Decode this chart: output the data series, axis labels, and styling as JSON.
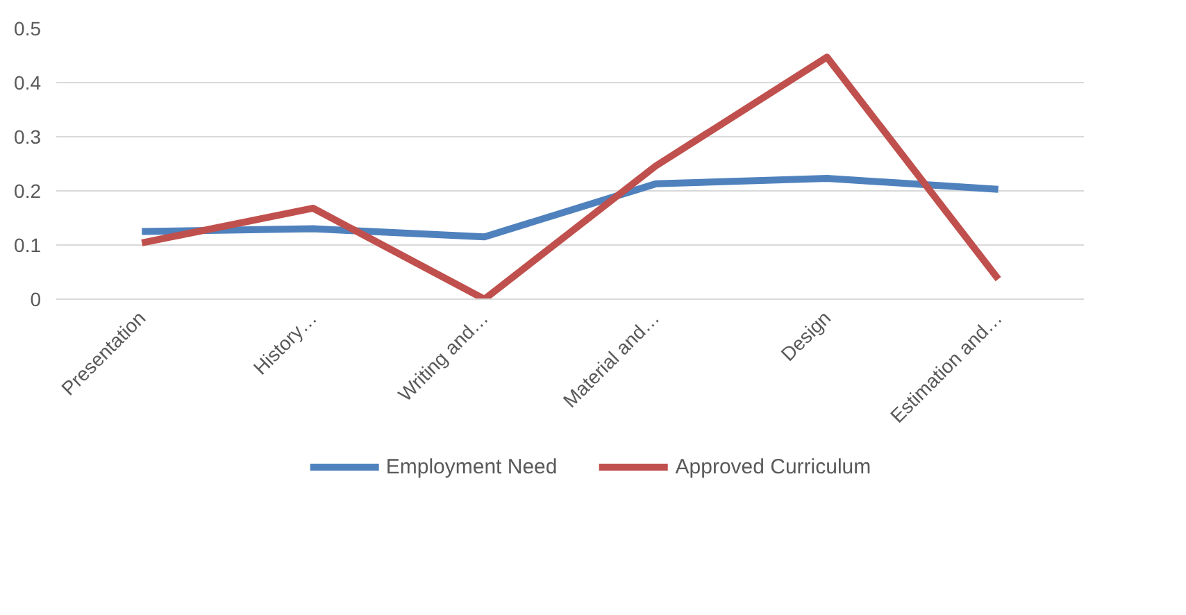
{
  "chart_data": {
    "type": "line",
    "categories": [
      "Presentation",
      "History…",
      "Writing and…",
      "Material and…",
      "Design",
      "Estimation and…"
    ],
    "series": [
      {
        "name": "Employment Need",
        "color": "#4f81bd",
        "values": [
          0.125,
          0.13,
          0.115,
          0.213,
          0.223,
          0.203
        ]
      },
      {
        "name": "Approved Curriculum",
        "color": "#c0504d",
        "values": [
          0.104,
          0.168,
          0,
          0.246,
          0.447,
          0.037
        ]
      }
    ],
    "ylim": [
      0,
      0.5
    ],
    "yticks": [
      0,
      0.1,
      0.2,
      0.3,
      0.4,
      0.5
    ],
    "grid": "y",
    "legend": "bottom",
    "marker": "none",
    "line_style": "solid"
  }
}
